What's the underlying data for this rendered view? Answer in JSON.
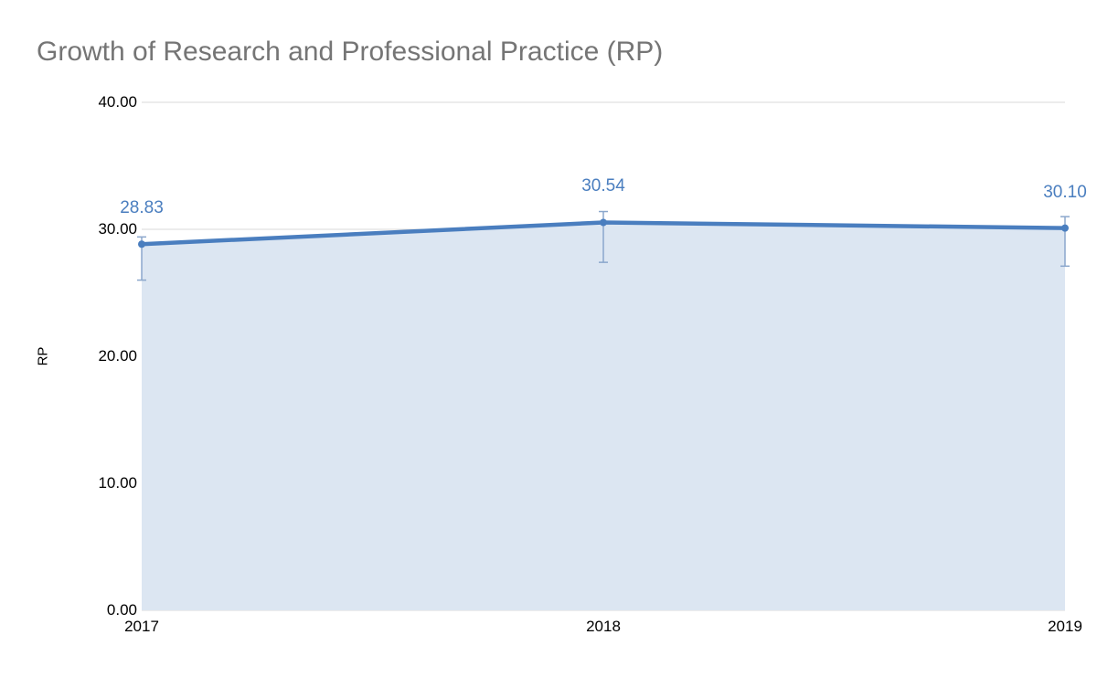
{
  "chart_data": {
    "type": "area",
    "title": "Growth of Research and Professional Practice (RP)",
    "xlabel": "",
    "ylabel": "RP",
    "categories": [
      "2017",
      "2018",
      "2019"
    ],
    "series": [
      {
        "name": "RP",
        "values": [
          28.83,
          30.54,
          30.1
        ],
        "data_labels": [
          "28.83",
          "30.54",
          "30.10"
        ],
        "error_low": [
          26.0,
          27.4,
          27.1
        ],
        "error_high": [
          29.4,
          31.4,
          31.0
        ]
      }
    ],
    "ylim": [
      0,
      40
    ],
    "yticks": [
      0,
      10,
      20,
      30,
      40
    ],
    "ytick_labels": [
      "0.00",
      "10.00",
      "20.00",
      "30.00",
      "40.00"
    ],
    "grid": true,
    "legend": "none",
    "colors": {
      "line": "#4a7ebf",
      "area_fill": "#dce6f2",
      "error_bar": "#8ba7cc",
      "label_text": "#4a7ebf",
      "gridline": "#d9d9d9",
      "axis_text": "#000000",
      "title_text": "#757575"
    }
  }
}
